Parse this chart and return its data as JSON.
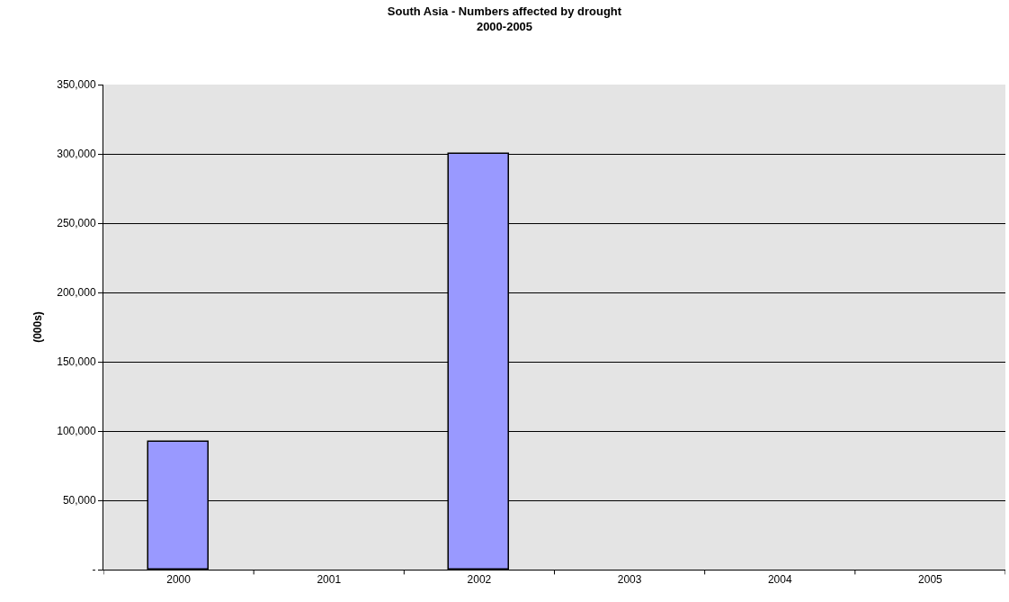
{
  "chart_data": {
    "type": "bar",
    "title": "South Asia - Numbers affected by drought\n2000-2005",
    "ylabel": "(000s)",
    "categories": [
      "2000",
      "2001",
      "2002",
      "2003",
      "2004",
      "2005"
    ],
    "values": [
      92000,
      null,
      300000,
      null,
      null,
      null
    ],
    "color": "#9999ff",
    "ylim": [
      0,
      350000
    ],
    "yticks": [
      {
        "value": 0,
        "label": "-"
      },
      {
        "value": 50000,
        "label": "50,000"
      },
      {
        "value": 100000,
        "label": "100,000"
      },
      {
        "value": 150000,
        "label": "150,000"
      },
      {
        "value": 200000,
        "label": "200,000"
      },
      {
        "value": 250000,
        "label": "250,000"
      },
      {
        "value": 300000,
        "label": "300,000"
      },
      {
        "value": 350000,
        "label": "350,000"
      }
    ],
    "grid": "y",
    "legend": false
  }
}
